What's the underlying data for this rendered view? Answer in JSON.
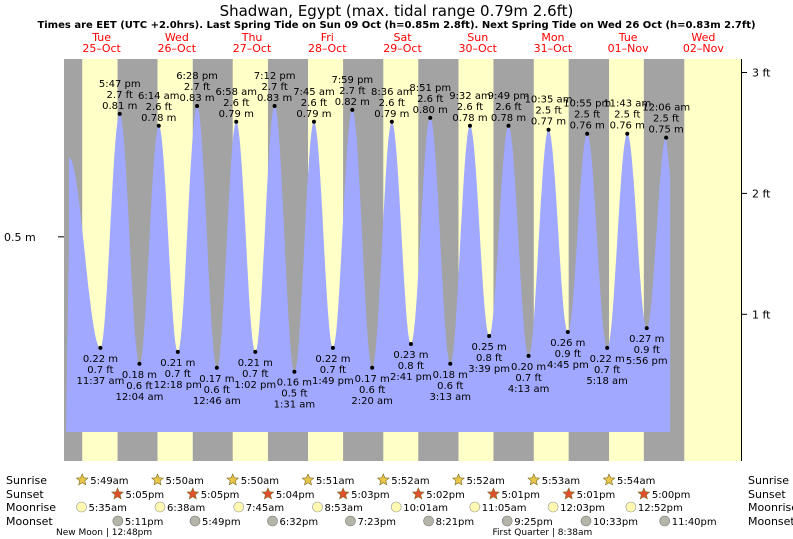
{
  "title": "Shadwan, Egypt (max. tidal range 0.79m 2.6ft)",
  "subtitle": "Times are EET (UTC +2.0hrs). Last Spring Tide on Sun 09 Oct (h=0.85m 2.8ft). Next Spring Tide on Wed 26 Oct (h=0.83m 2.7ft)",
  "chart_data": {
    "type": "area",
    "title": "Shadwan, Egypt (max. tidal range 0.79m 2.6ft)",
    "days": [
      {
        "dow": "Tue",
        "date": "25–Oct"
      },
      {
        "dow": "Wed",
        "date": "26–Oct"
      },
      {
        "dow": "Thu",
        "date": "27–Oct"
      },
      {
        "dow": "Fri",
        "date": "28–Oct"
      },
      {
        "dow": "Sat",
        "date": "29–Oct"
      },
      {
        "dow": "Sun",
        "date": "30–Oct"
      },
      {
        "dow": "Mon",
        "date": "31–Oct"
      },
      {
        "dow": "Tue",
        "date": "01–Nov"
      },
      {
        "dow": "Wed",
        "date": "02–Nov"
      }
    ],
    "left_axis": {
      "unit": "m",
      "ticks": [
        {
          "value": 0.5,
          "label": "0.5 m"
        }
      ]
    },
    "right_axis": {
      "unit": "ft",
      "ticks": [
        {
          "value": 1,
          "label": "1 ft"
        },
        {
          "value": 2,
          "label": "2 ft"
        },
        {
          "value": 3,
          "label": "3 ft"
        }
      ]
    },
    "tides": [
      {
        "t": 1.067,
        "h": 0.7,
        "kind": "high",
        "time": "",
        "ft": "",
        "m": ""
      },
      {
        "t": 1.484,
        "h": 0.22,
        "kind": "low",
        "time": "11:37 am",
        "ft": "0.7 ft",
        "m": "0.22 m"
      },
      {
        "t": 1.741,
        "h": 0.81,
        "kind": "high",
        "time": "5:47 pm",
        "ft": "2.7 ft",
        "m": "0.81 m"
      },
      {
        "t": 2.003,
        "h": 0.18,
        "kind": "low",
        "time": "12:04 am",
        "ft": "0.6 ft",
        "m": "0.18 m"
      },
      {
        "t": 2.26,
        "h": 0.78,
        "kind": "high",
        "time": "6:14 am",
        "ft": "2.6 ft",
        "m": "0.78 m"
      },
      {
        "t": 2.513,
        "h": 0.21,
        "kind": "low",
        "time": "12:18 pm",
        "ft": "0.7 ft",
        "m": "0.21 m"
      },
      {
        "t": 2.769,
        "h": 0.83,
        "kind": "high",
        "time": "6:28 pm",
        "ft": "2.7 ft",
        "m": "0.83 m"
      },
      {
        "t": 3.032,
        "h": 0.17,
        "kind": "low",
        "time": "12:46 am",
        "ft": "0.6 ft",
        "m": "0.17 m"
      },
      {
        "t": 3.29,
        "h": 0.79,
        "kind": "high",
        "time": "6:58 am",
        "ft": "2.6 ft",
        "m": "0.79 m"
      },
      {
        "t": 3.543,
        "h": 0.21,
        "kind": "low",
        "time": "1:02 pm",
        "ft": "0.7 ft",
        "m": "0.21 m"
      },
      {
        "t": 3.8,
        "h": 0.83,
        "kind": "high",
        "time": "7:12 pm",
        "ft": "2.7 ft",
        "m": "0.83 m"
      },
      {
        "t": 4.063,
        "h": 0.16,
        "kind": "low",
        "time": "1:31 am",
        "ft": "0.5 ft",
        "m": "0.16 m"
      },
      {
        "t": 4.323,
        "h": 0.79,
        "kind": "high",
        "time": "7:45 am",
        "ft": "2.6 ft",
        "m": "0.79 m"
      },
      {
        "t": 4.575,
        "h": 0.22,
        "kind": "low",
        "time": "1:49 pm",
        "ft": "0.7 ft",
        "m": "0.22 m"
      },
      {
        "t": 4.833,
        "h": 0.82,
        "kind": "high",
        "time": "7:59 pm",
        "ft": "2.7 ft",
        "m": "0.82 m"
      },
      {
        "t": 5.097,
        "h": 0.17,
        "kind": "low",
        "time": "2:20 am",
        "ft": "0.6 ft",
        "m": "0.17 m"
      },
      {
        "t": 5.358,
        "h": 0.79,
        "kind": "high",
        "time": "8:36 am",
        "ft": "2.6 ft",
        "m": "0.79 m"
      },
      {
        "t": 5.612,
        "h": 0.23,
        "kind": "low",
        "time": "2:41 pm",
        "ft": "0.8 ft",
        "m": "0.23 m"
      },
      {
        "t": 5.869,
        "h": 0.8,
        "kind": "high",
        "time": "8:51 pm",
        "ft": "2.6 ft",
        "m": "0.80 m"
      },
      {
        "t": 6.135,
        "h": 0.18,
        "kind": "low",
        "time": "3:13 am",
        "ft": "0.6 ft",
        "m": "0.18 m"
      },
      {
        "t": 6.397,
        "h": 0.78,
        "kind": "high",
        "time": "9:32 am",
        "ft": "2.6 ft",
        "m": "0.78 m"
      },
      {
        "t": 6.652,
        "h": 0.25,
        "kind": "low",
        "time": "3:39 pm",
        "ft": "0.8 ft",
        "m": "0.25 m"
      },
      {
        "t": 6.909,
        "h": 0.78,
        "kind": "high",
        "time": "9:49 pm",
        "ft": "2.6 ft",
        "m": "0.78 m"
      },
      {
        "t": 7.176,
        "h": 0.2,
        "kind": "low",
        "time": "4:13 am",
        "ft": "0.7 ft",
        "m": "0.20 m"
      },
      {
        "t": 7.441,
        "h": 0.77,
        "kind": "high",
        "time": "10:35 am",
        "ft": "2.5 ft",
        "m": "0.77 m"
      },
      {
        "t": 7.698,
        "h": 0.26,
        "kind": "low",
        "time": "4:45 pm",
        "ft": "0.9 ft",
        "m": "0.26 m"
      },
      {
        "t": 7.955,
        "h": 0.76,
        "kind": "high",
        "time": "10:55 pm",
        "ft": "2.5 ft",
        "m": "0.76 m"
      },
      {
        "t": 8.221,
        "h": 0.22,
        "kind": "low",
        "time": "5:18 am",
        "ft": "0.7 ft",
        "m": "0.22 m"
      },
      {
        "t": 8.488,
        "h": 0.76,
        "kind": "high",
        "time": "11:43 am",
        "ft": "2.5 ft",
        "m": "0.76 m"
      },
      {
        "t": 8.747,
        "h": 0.27,
        "kind": "low",
        "time": "5:56 pm",
        "ft": "0.9 ft",
        "m": "0.27 m"
      },
      {
        "t": 9.005,
        "h": 0.75,
        "kind": "high",
        "time": "12:06 am",
        "ft": "2.5 ft",
        "m": "0.75 m"
      }
    ],
    "sunrise": [
      "5:49am",
      "5:50am",
      "5:50am",
      "5:51am",
      "5:52am",
      "5:52am",
      "5:53am",
      "5:54am"
    ],
    "sunset": [
      "5:05pm",
      "5:05pm",
      "5:04pm",
      "5:03pm",
      "5:02pm",
      "5:01pm",
      "5:01pm",
      "5:00pm"
    ],
    "moonrise": [
      {
        "t": 1.233,
        "time": "5:35am"
      },
      {
        "t": 2.276,
        "time": "6:38am"
      },
      {
        "t": 3.323,
        "time": "7:45am"
      },
      {
        "t": 4.37,
        "time": "8:53am"
      },
      {
        "t": 5.417,
        "time": "10:01am"
      },
      {
        "t": 6.461,
        "time": "11:05am"
      },
      {
        "t": 7.502,
        "time": "12:03pm"
      },
      {
        "t": 8.536,
        "time": "12:52pm"
      }
    ],
    "moonset": [
      {
        "t": 1.716,
        "time": "5:11pm"
      },
      {
        "t": 2.742,
        "time": "5:49pm"
      },
      {
        "t": 3.772,
        "time": "6:32pm"
      },
      {
        "t": 4.808,
        "time": "7:23pm"
      },
      {
        "t": 5.847,
        "time": "8:21pm"
      },
      {
        "t": 6.892,
        "time": "9:25pm"
      },
      {
        "t": 7.94,
        "time": "10:33pm"
      },
      {
        "t": 8.986,
        "time": "11:40pm"
      }
    ],
    "moon_phases": [
      {
        "t": 1.533,
        "label": "New Moon | 12:48pm"
      },
      {
        "t": 7.36,
        "label": "First Quarter | 8:38am"
      }
    ],
    "row_labels": {
      "sunrise": "Sunrise",
      "sunset": "Sunset",
      "moonrise": "Moonrise",
      "moonset": "Moonset"
    },
    "colors": {
      "night": "#a3a3a3",
      "day": "#ffffc8",
      "water": "#a0a8ff",
      "day_label": "#ff0000",
      "sun": "#e8c64a",
      "sunset_star": "#e0502c",
      "moon_rise": "#fff8b0",
      "moon_set": "#b4b4a8"
    }
  }
}
